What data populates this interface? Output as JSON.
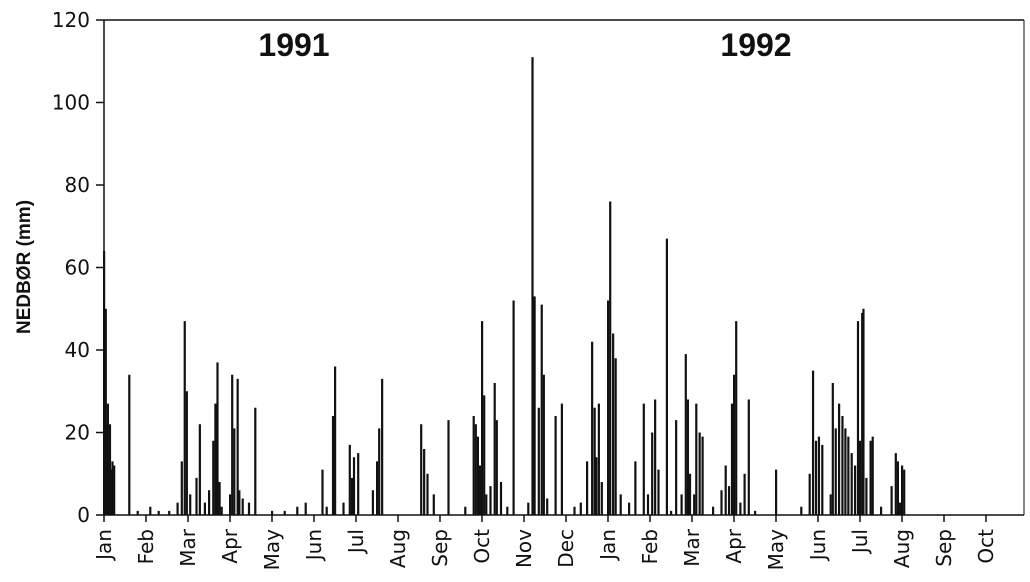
{
  "chart_data": {
    "type": "bar",
    "title": "",
    "ylabel": "NEDBØR (mm)",
    "xlabel": "",
    "ylim": [
      0,
      120
    ],
    "yticks": [
      0,
      20,
      40,
      60,
      80,
      100,
      120
    ],
    "months": [
      "Jan",
      "Feb",
      "Mar",
      "Apr",
      "May",
      "Jun",
      "Jul",
      "Aug",
      "Sep",
      "Oct",
      "Nov",
      "Dec",
      "Jan",
      "Feb",
      "Mar",
      "Apr",
      "May",
      "Jun",
      "Jul",
      "Aug",
      "Sep",
      "Oct"
    ],
    "year_labels": [
      {
        "text": "1991",
        "month_index": 5
      },
      {
        "text": "1992",
        "month_index": 16
      }
    ],
    "series": [
      {
        "values": [
          [
            0.0,
            64
          ],
          [
            0.02,
            20
          ],
          [
            0.04,
            50
          ],
          [
            0.05,
            18
          ],
          [
            0.07,
            22
          ],
          [
            0.09,
            27
          ],
          [
            0.1,
            15
          ],
          [
            0.12,
            12
          ],
          [
            0.14,
            22
          ],
          [
            0.16,
            9
          ],
          [
            0.18,
            11
          ],
          [
            0.2,
            13
          ],
          [
            0.22,
            8
          ],
          [
            0.24,
            12
          ],
          [
            0.6,
            34
          ],
          [
            0.8,
            1
          ],
          [
            1.1,
            2
          ],
          [
            1.3,
            1
          ],
          [
            1.55,
            1
          ],
          [
            1.75,
            3
          ],
          [
            1.85,
            13
          ],
          [
            1.92,
            47
          ],
          [
            1.97,
            30
          ],
          [
            2.05,
            5
          ],
          [
            2.2,
            9
          ],
          [
            2.28,
            22
          ],
          [
            2.4,
            3
          ],
          [
            2.5,
            6
          ],
          [
            2.6,
            18
          ],
          [
            2.65,
            27
          ],
          [
            2.7,
            37
          ],
          [
            2.75,
            8
          ],
          [
            2.8,
            2
          ],
          [
            3.0,
            5
          ],
          [
            3.05,
            34
          ],
          [
            3.1,
            21
          ],
          [
            3.18,
            33
          ],
          [
            3.22,
            6
          ],
          [
            3.3,
            4
          ],
          [
            3.45,
            3
          ],
          [
            3.6,
            26
          ],
          [
            4.0,
            1
          ],
          [
            4.3,
            1
          ],
          [
            4.6,
            2
          ],
          [
            4.8,
            3
          ],
          [
            5.2,
            11
          ],
          [
            5.3,
            2
          ],
          [
            5.45,
            24
          ],
          [
            5.5,
            36
          ],
          [
            5.7,
            3
          ],
          [
            5.85,
            17
          ],
          [
            5.9,
            9
          ],
          [
            5.95,
            14
          ],
          [
            6.05,
            15
          ],
          [
            6.4,
            6
          ],
          [
            6.5,
            13
          ],
          [
            6.55,
            21
          ],
          [
            6.62,
            33
          ],
          [
            7.55,
            22
          ],
          [
            7.62,
            16
          ],
          [
            7.7,
            10
          ],
          [
            7.85,
            5
          ],
          [
            8.2,
            23
          ],
          [
            8.6,
            2
          ],
          [
            8.8,
            24
          ],
          [
            8.85,
            22
          ],
          [
            8.9,
            19
          ],
          [
            8.95,
            12
          ],
          [
            9.0,
            47
          ],
          [
            9.05,
            29
          ],
          [
            9.1,
            5
          ],
          [
            9.2,
            7
          ],
          [
            9.3,
            32
          ],
          [
            9.35,
            23
          ],
          [
            9.45,
            8
          ],
          [
            9.6,
            2
          ],
          [
            9.75,
            52
          ],
          [
            10.1,
            3
          ],
          [
            10.2,
            111
          ],
          [
            10.25,
            53
          ],
          [
            10.35,
            26
          ],
          [
            10.42,
            51
          ],
          [
            10.47,
            34
          ],
          [
            10.55,
            4
          ],
          [
            10.75,
            24
          ],
          [
            10.9,
            27
          ],
          [
            11.2,
            2
          ],
          [
            11.35,
            3
          ],
          [
            11.5,
            13
          ],
          [
            11.62,
            42
          ],
          [
            11.68,
            26
          ],
          [
            11.72,
            14
          ],
          [
            11.78,
            27
          ],
          [
            11.85,
            8
          ],
          [
            12.0,
            52
          ],
          [
            12.05,
            76
          ],
          [
            12.12,
            44
          ],
          [
            12.18,
            38
          ],
          [
            12.3,
            5
          ],
          [
            12.5,
            3
          ],
          [
            12.65,
            13
          ],
          [
            12.85,
            27
          ],
          [
            12.95,
            5
          ],
          [
            13.05,
            20
          ],
          [
            13.12,
            28
          ],
          [
            13.2,
            11
          ],
          [
            13.4,
            67
          ],
          [
            13.5,
            1
          ],
          [
            13.62,
            23
          ],
          [
            13.75,
            5
          ],
          [
            13.85,
            39
          ],
          [
            13.9,
            28
          ],
          [
            13.95,
            10
          ],
          [
            14.05,
            5
          ],
          [
            14.1,
            27
          ],
          [
            14.18,
            20
          ],
          [
            14.25,
            19
          ],
          [
            14.5,
            2
          ],
          [
            14.7,
            6
          ],
          [
            14.8,
            12
          ],
          [
            14.88,
            7
          ],
          [
            14.95,
            27
          ],
          [
            15.0,
            34
          ],
          [
            15.05,
            47
          ],
          [
            15.15,
            3
          ],
          [
            15.25,
            10
          ],
          [
            15.35,
            28
          ],
          [
            15.5,
            1
          ],
          [
            16.0,
            11
          ],
          [
            16.6,
            2
          ],
          [
            16.8,
            10
          ],
          [
            16.88,
            35
          ],
          [
            16.95,
            18
          ],
          [
            17.02,
            19
          ],
          [
            17.1,
            17
          ],
          [
            17.3,
            5
          ],
          [
            17.35,
            32
          ],
          [
            17.42,
            21
          ],
          [
            17.5,
            27
          ],
          [
            17.58,
            24
          ],
          [
            17.65,
            21
          ],
          [
            17.72,
            19
          ],
          [
            17.8,
            15
          ],
          [
            17.88,
            12
          ],
          [
            17.95,
            47
          ],
          [
            18.0,
            18
          ],
          [
            18.05,
            49
          ],
          [
            18.08,
            50
          ],
          [
            18.15,
            9
          ],
          [
            18.25,
            18
          ],
          [
            18.3,
            19
          ],
          [
            18.5,
            2
          ],
          [
            18.75,
            7
          ],
          [
            18.85,
            15
          ],
          [
            18.9,
            13
          ],
          [
            18.95,
            3
          ],
          [
            19.0,
            12
          ],
          [
            19.05,
            11
          ]
        ]
      }
    ]
  }
}
